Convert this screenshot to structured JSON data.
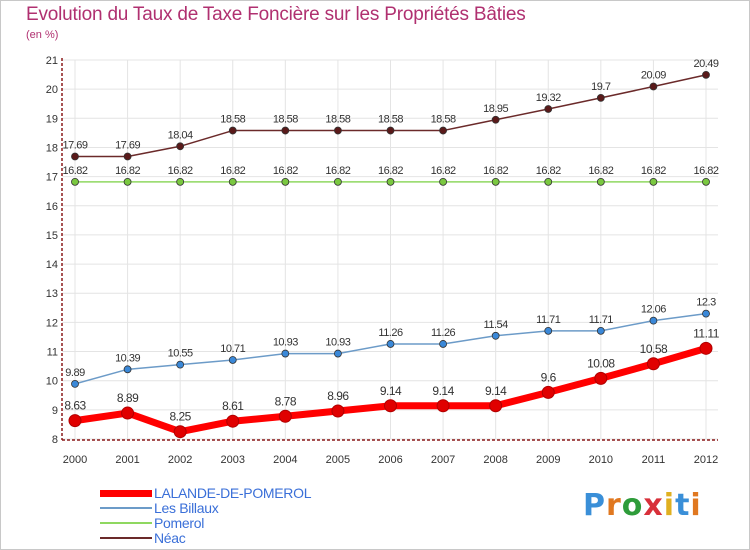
{
  "title": "Evolution du Taux de Taxe Foncière sur les Propriétés Bâties",
  "unit_label": "(en %)",
  "logo": {
    "text": "Proxiti",
    "letter_colors": [
      "#3a8fd8",
      "#e07820",
      "#2e9c3a",
      "#d8303a",
      "#e0b020",
      "#3a8fd8",
      "#e07820"
    ]
  },
  "legend": [
    {
      "label": "LALANDE-DE-POMEROL",
      "color": "#ff0000"
    },
    {
      "label": "Les Billaux",
      "color": "#6c9bc8"
    },
    {
      "label": "Pomerol",
      "color": "#8fd860"
    },
    {
      "label": "Néac",
      "color": "#6b2a2a"
    }
  ],
  "chart_data": {
    "type": "line",
    "title": "Evolution du Taux de Taxe Foncière sur les Propriétés Bâties",
    "xlabel": "",
    "ylabel": "(en %)",
    "x": [
      "2000",
      "2001",
      "2002",
      "2003",
      "2004",
      "2005",
      "2006",
      "2007",
      "2008",
      "2009",
      "2010",
      "2011",
      "2012"
    ],
    "yticks": [
      8,
      9,
      10,
      11,
      12,
      13,
      14,
      15,
      16,
      17,
      18,
      19,
      20,
      21
    ],
    "ylim": [
      8,
      21
    ],
    "series": [
      {
        "name": "LALANDE-DE-POMEROL",
        "color": "#ff0000",
        "marker": "#e00000",
        "highlight": true,
        "values": [
          8.63,
          8.89,
          8.25,
          8.61,
          8.78,
          8.96,
          9.14,
          9.14,
          9.14,
          9.6,
          10.08,
          10.58,
          11.11
        ],
        "labels": [
          "8.63",
          "8.89",
          "8.25",
          "8.61",
          "8.78",
          "8.96",
          "9.14",
          "9.14",
          "9.14",
          "9.6",
          "10.08",
          "10.58",
          "11.11"
        ]
      },
      {
        "name": "Les Billaux",
        "color": "#6c9bc8",
        "marker": "#3a88d8",
        "highlight": false,
        "values": [
          9.89,
          10.39,
          10.55,
          10.71,
          10.93,
          10.93,
          11.26,
          11.26,
          11.54,
          11.71,
          11.71,
          12.06,
          12.3
        ],
        "labels": [
          "9.89",
          "10.39",
          "10.55",
          "10.71",
          "10.93",
          "10.93",
          "11.26",
          "11.26",
          "11.54",
          "11.71",
          "11.71",
          "12.06",
          "12.3"
        ]
      },
      {
        "name": "Pomerol",
        "color": "#8fd860",
        "marker": "#7ac840",
        "highlight": false,
        "values": [
          16.82,
          16.82,
          16.82,
          16.82,
          16.82,
          16.82,
          16.82,
          16.82,
          16.82,
          16.82,
          16.82,
          16.82,
          16.82
        ],
        "labels": [
          "16.82",
          "16.82",
          "16.82",
          "16.82",
          "16.82",
          "16.82",
          "16.82",
          "16.82",
          "16.82",
          "16.82",
          "16.82",
          "16.82",
          "16.82"
        ]
      },
      {
        "name": "Néac",
        "color": "#6b2a2a",
        "marker": "#5a1a1a",
        "highlight": false,
        "values": [
          17.69,
          17.69,
          18.04,
          18.58,
          18.58,
          18.58,
          18.58,
          18.58,
          18.95,
          19.32,
          19.7,
          20.09,
          20.49
        ],
        "labels": [
          "17.69",
          "17.69",
          "18.04",
          "18.58",
          "18.58",
          "18.58",
          "18.58",
          "18.58",
          "18.95",
          "19.32",
          "19.7",
          "20.09",
          "20.49"
        ]
      }
    ]
  }
}
